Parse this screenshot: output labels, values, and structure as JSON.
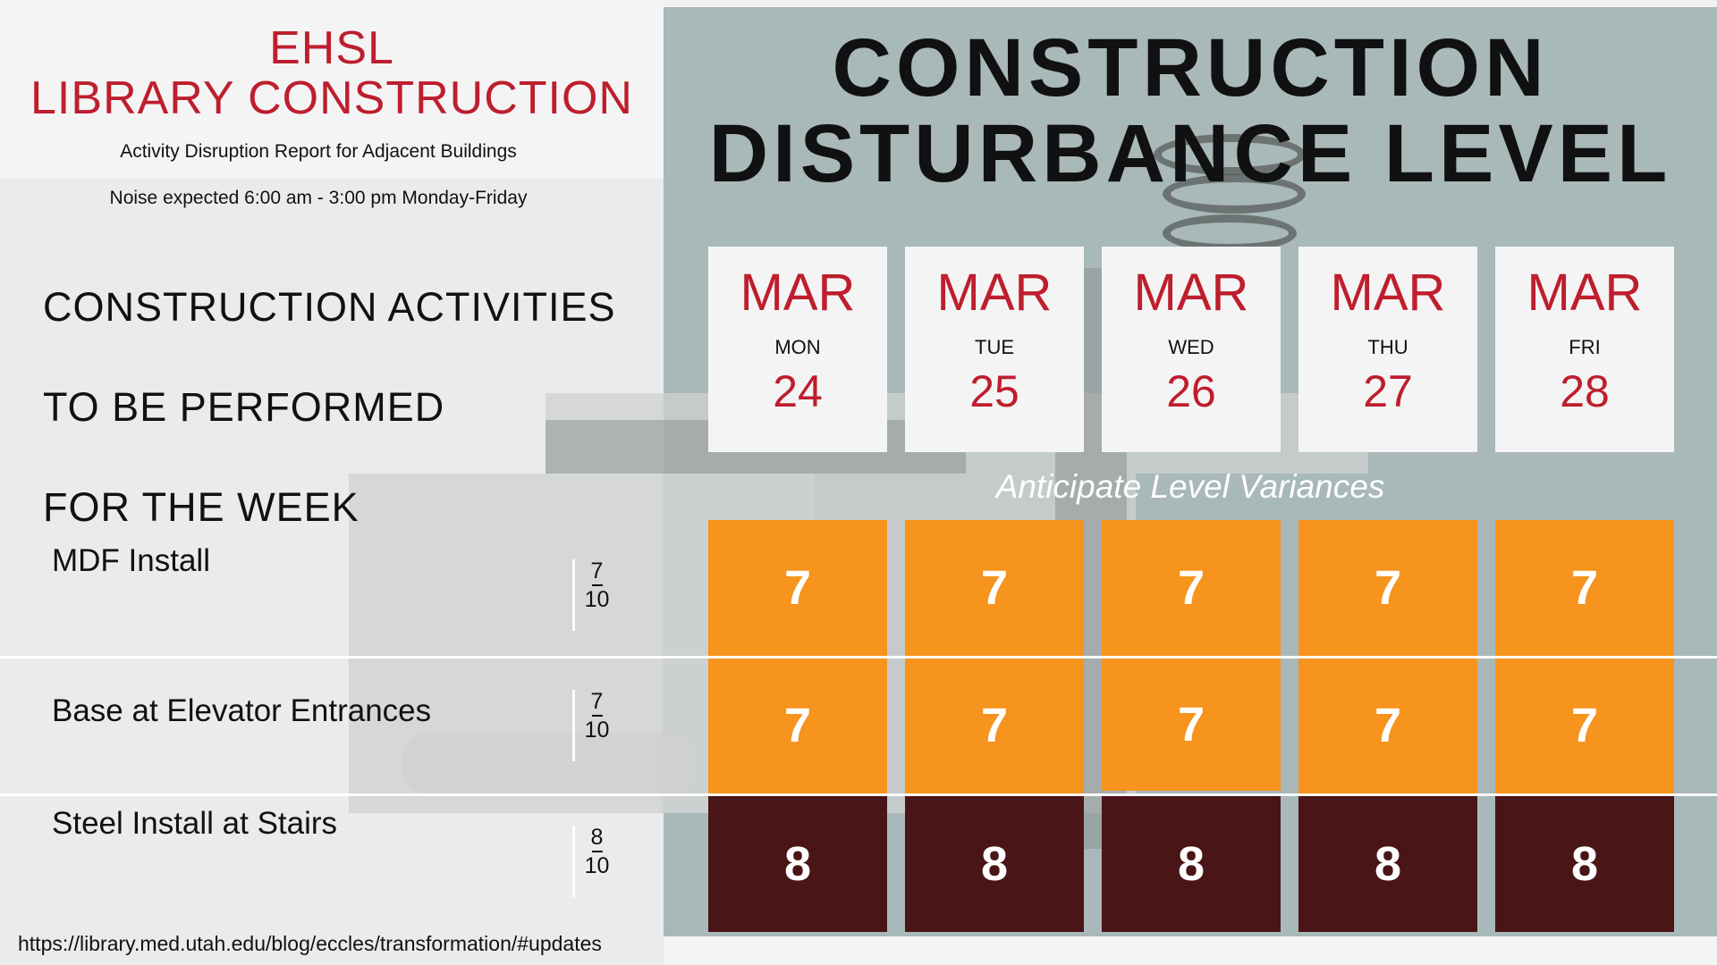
{
  "header": {
    "title_line1": "EHSL",
    "title_line2": "LIBRARY CONSTRUCTION",
    "subtitle": "Activity Disruption Report for Adjacent Buildings",
    "noise": "Noise expected 6:00 am - 3:00 pm Monday-Friday"
  },
  "activities_heading": {
    "line1": "CONSTRUCTION ACTIVITIES",
    "line2": "TO BE PERFORMED",
    "line3": "FOR THE WEEK"
  },
  "main_title": {
    "line1": "CONSTRUCTION",
    "line2": "DISTURBANCE LEVEL"
  },
  "days": [
    {
      "month": "MAR",
      "weekday": "MON",
      "date": "24"
    },
    {
      "month": "MAR",
      "weekday": "TUE",
      "date": "25"
    },
    {
      "month": "MAR",
      "weekday": "WED",
      "date": "26"
    },
    {
      "month": "MAR",
      "weekday": "THU",
      "date": "27"
    },
    {
      "month": "MAR",
      "weekday": "FRI",
      "date": "28"
    }
  ],
  "variance_note": "Anticipate Level Variances",
  "activities": [
    {
      "name": "MDF Install",
      "level": "7",
      "max": "10",
      "daily": [
        "7",
        "7",
        "7",
        "7",
        "7"
      ],
      "color": "#f6941d"
    },
    {
      "name": "Base at Elevator Entrances",
      "level": "7",
      "max": "10",
      "daily": [
        "7",
        "7",
        "7",
        "7",
        "7"
      ],
      "color": "#f6941d"
    },
    {
      "name": "Steel Install at Stairs",
      "level": "8",
      "max": "10",
      "daily": [
        "8",
        "8",
        "8",
        "8",
        "8"
      ],
      "color": "#4a1517"
    }
  ],
  "footer": {
    "url": "https://library.med.utah.edu/blog/eccles/transformation/#updates"
  },
  "colors": {
    "brand_red": "#be1e2d",
    "level_orange": "#f6941d",
    "level_maroon": "#4a1517",
    "panel_gray": "#a9b8b8"
  }
}
